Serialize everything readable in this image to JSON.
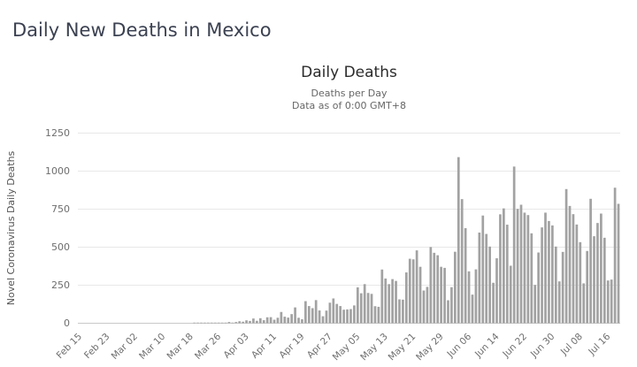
{
  "page": {
    "title": "Daily New Deaths in Mexico"
  },
  "chart": {
    "title": "Daily Deaths",
    "subtitle_line1": "Deaths per Day",
    "subtitle_line2": "Data as of 0:00 GMT+8",
    "y_axis_label": "Novel Coronavirus Daily Deaths"
  },
  "colors": {
    "bar": "#a2a2a2",
    "grid": "#e8e8e8",
    "baseline": "#c9c9c9",
    "tick_text": "#6e6e6e",
    "page_title": "#3b4151",
    "chart_title": "#2b2b2b",
    "subtitle": "#666666",
    "y_axis_label": "#555555"
  },
  "chart_data": {
    "type": "bar",
    "title": "Daily Deaths",
    "xlabel": "",
    "ylabel": "Novel Coronavirus Daily Deaths",
    "ylim": [
      0,
      1250
    ],
    "y_ticks": [
      0,
      250,
      500,
      750,
      1000,
      1250
    ],
    "grid": true,
    "legend": false,
    "x_tick_every": 8,
    "x_tick_labels": [
      "Feb 15",
      "Feb 23",
      "Mar 02",
      "Mar 10",
      "Mar 18",
      "Mar 26",
      "Apr 03",
      "Apr 11",
      "Apr 19",
      "Apr 27",
      "May 05",
      "May 13",
      "May 21",
      "May 29",
      "Jun 06",
      "Jun 14",
      "Jun 22",
      "Jun 30",
      "Jul 08",
      "Jul 16"
    ],
    "categories": [
      "Feb 15",
      "Feb 16",
      "Feb 17",
      "Feb 18",
      "Feb 19",
      "Feb 20",
      "Feb 21",
      "Feb 22",
      "Feb 23",
      "Feb 24",
      "Feb 25",
      "Feb 26",
      "Feb 27",
      "Feb 28",
      "Feb 29",
      "Mar 01",
      "Mar 02",
      "Mar 03",
      "Mar 04",
      "Mar 05",
      "Mar 06",
      "Mar 07",
      "Mar 08",
      "Mar 09",
      "Mar 10",
      "Mar 11",
      "Mar 12",
      "Mar 13",
      "Mar 14",
      "Mar 15",
      "Mar 16",
      "Mar 17",
      "Mar 18",
      "Mar 19",
      "Mar 20",
      "Mar 21",
      "Mar 22",
      "Mar 23",
      "Mar 24",
      "Mar 25",
      "Mar 26",
      "Mar 27",
      "Mar 28",
      "Mar 29",
      "Mar 30",
      "Mar 31",
      "Apr 01",
      "Apr 02",
      "Apr 03",
      "Apr 04",
      "Apr 05",
      "Apr 06",
      "Apr 07",
      "Apr 08",
      "Apr 09",
      "Apr 10",
      "Apr 11",
      "Apr 12",
      "Apr 13",
      "Apr 14",
      "Apr 15",
      "Apr 16",
      "Apr 17",
      "Apr 18",
      "Apr 19",
      "Apr 20",
      "Apr 21",
      "Apr 22",
      "Apr 23",
      "Apr 24",
      "Apr 25",
      "Apr 26",
      "Apr 27",
      "Apr 28",
      "Apr 29",
      "Apr 30",
      "May 01",
      "May 02",
      "May 03",
      "May 04",
      "May 05",
      "May 06",
      "May 07",
      "May 08",
      "May 09",
      "May 10",
      "May 11",
      "May 12",
      "May 13",
      "May 14",
      "May 15",
      "May 16",
      "May 17",
      "May 18",
      "May 19",
      "May 20",
      "May 21",
      "May 22",
      "May 23",
      "May 24",
      "May 25",
      "May 26",
      "May 27",
      "May 28",
      "May 29",
      "May 30",
      "May 31",
      "Jun 01",
      "Jun 02",
      "Jun 03",
      "Jun 04",
      "Jun 05",
      "Jun 06",
      "Jun 07",
      "Jun 08",
      "Jun 09",
      "Jun 10",
      "Jun 11",
      "Jun 12",
      "Jun 13",
      "Jun 14",
      "Jun 15",
      "Jun 16",
      "Jun 17",
      "Jun 18",
      "Jun 19",
      "Jun 20",
      "Jun 21",
      "Jun 22",
      "Jun 23",
      "Jun 24",
      "Jun 25",
      "Jun 26",
      "Jun 27",
      "Jun 28",
      "Jun 29",
      "Jun 30",
      "Jul 01",
      "Jul 02",
      "Jul 03",
      "Jul 04",
      "Jul 05",
      "Jul 06",
      "Jul 07",
      "Jul 08",
      "Jul 09",
      "Jul 10",
      "Jul 11",
      "Jul 12",
      "Jul 13",
      "Jul 14",
      "Jul 15",
      "Jul 16",
      "Jul 17",
      "Jul 18",
      "Jul 19"
    ],
    "values": [
      0,
      0,
      0,
      0,
      0,
      0,
      0,
      0,
      0,
      0,
      0,
      0,
      0,
      0,
      0,
      0,
      0,
      0,
      0,
      0,
      0,
      0,
      0,
      0,
      0,
      0,
      0,
      0,
      0,
      0,
      0,
      0,
      0,
      1,
      1,
      2,
      1,
      1,
      1,
      2,
      4,
      4,
      4,
      8,
      1,
      8,
      13,
      10,
      19,
      15,
      31,
      16,
      33,
      20,
      39,
      40,
      23,
      36,
      74,
      43,
      37,
      60,
      104,
      36,
      26,
      145,
      113,
      99,
      152,
      84,
      46,
      83,
      135,
      163,
      127,
      113,
      89,
      91,
      93,
      117,
      236,
      197,
      257,
      199,
      193,
      112,
      108,
      353,
      294,
      257,
      290,
      278,
      157,
      155,
      334,
      424,
      420,
      479,
      371,
      215,
      239,
      501,
      463,
      447,
      371,
      364,
      151,
      237,
      470,
      1092,
      816,
      625,
      341,
      188,
      354,
      596,
      708,
      587,
      504,
      266,
      427,
      716,
      755,
      648,
      378,
      1030,
      752,
      779,
      727,
      711,
      591,
      252,
      465,
      630,
      727,
      672,
      643,
      504,
      275,
      469,
      882,
      771,
      717,
      649,
      533,
      262,
      475,
      818,
      572,
      659,
      721,
      562,
      281,
      287,
      891,
      785
    ]
  }
}
